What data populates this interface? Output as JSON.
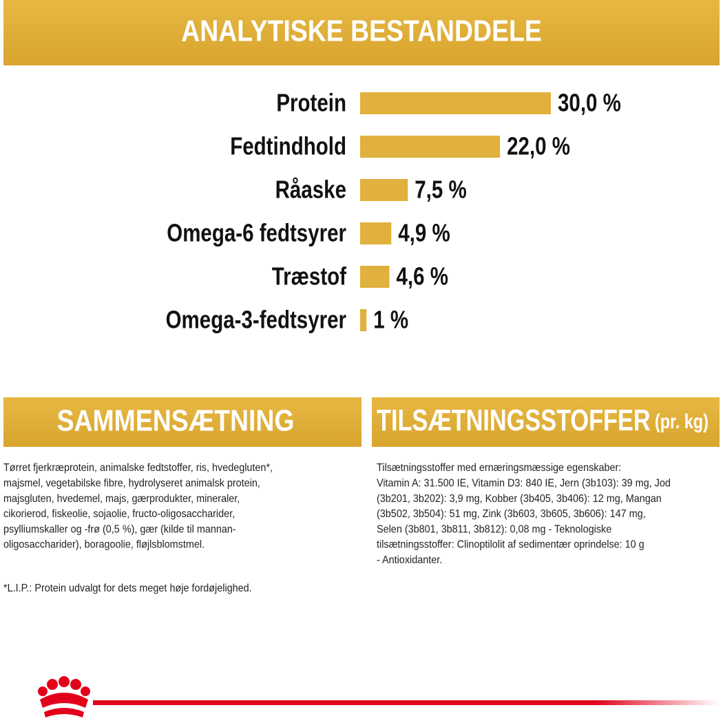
{
  "chart_data": {
    "type": "bar",
    "title": "ANALYTISKE BESTANDDELE",
    "categories": [
      "Protein",
      "Fedtindhold",
      "Råaske",
      "Omega-6 fedtsyrer",
      "Træstof",
      "Omega-3-fedtsyrer"
    ],
    "values": [
      30,
      22,
      7.5,
      4.9,
      4.6,
      1
    ],
    "value_labels": [
      "30,0 %",
      "22,0 %",
      "7,5 %",
      "4,9 %",
      "4,6 %",
      "1 %"
    ],
    "color": "#e0b13c"
  },
  "composition": {
    "title": "SAMMENSÆTNING",
    "lines": [
      "Tørret fjerkræprotein, animalske fedtstoffer, ris, hvedegluten*,",
      "majsmel, vegetabilske fibre, hydrolyseret animalsk protein,",
      "majsgluten, hvedemel, majs, gærprodukter, mineraler,",
      "cikorierod, fiskeolie, sojaolie, fructo-oligosaccharider,",
      "psylliumskaller og -frø (0,5 %),  gær (kilde til mannan-",
      "oligosaccharider), boragoolie, fløjlsblomstmel."
    ],
    "note": "*L.I.P.: Protein udvalgt for dets meget høje fordøjelighed."
  },
  "additives": {
    "title": "TILSÆTNINGSSTOFFER",
    "title_suffix": "(pr. kg)",
    "lines": [
      "Tilsætningsstoffer med ernæringsmæssige egenskaber:",
      "Vitamin A: 31.500 IE, Vitamin D3: 840 IE, Jern (3b103): 39 mg, Jod",
      "(3b201, 3b202): 3,9 mg, Kobber (3b405, 3b406): 12 mg, Mangan",
      "(3b502, 3b504): 51 mg, Zink (3b603, 3b605, 3b606): 147 mg,",
      "Selen (3b801, 3b811, 3b812): 0,08 mg - Teknologiske",
      "tilsætningsstoffer: Clinoptilolit af sedimentær oprindelse: 10 g",
      "- Antioxidanter."
    ]
  }
}
